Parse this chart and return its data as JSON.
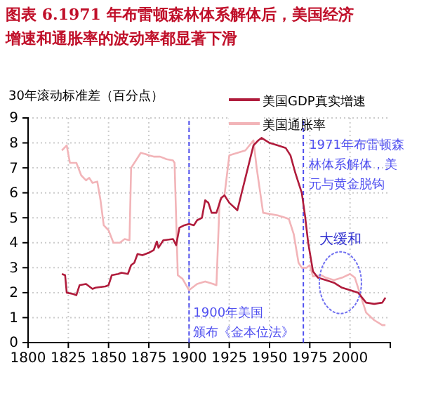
{
  "chart_data": {
    "type": "line",
    "title": "图表 6.1971 年布雷顿森林体系解体后，美国经济增速和通胀率的波动率都显著下滑",
    "ylabel": "30年滚动标准差（百分点）",
    "xlim": [
      1800,
      2025
    ],
    "xticks": [
      1800,
      1825,
      1850,
      1875,
      1900,
      1925,
      1950,
      1975,
      2000
    ],
    "ylim": [
      0,
      9
    ],
    "yticks": [
      0,
      1,
      2,
      3,
      4,
      5,
      6,
      7,
      8,
      9
    ],
    "grid": true,
    "legend": "top right",
    "line_style": "solid",
    "marker": "none",
    "series": [
      {
        "name": "美国GDP真实增速",
        "color": "#b01c3c",
        "x": [
          1821,
          1823,
          1824,
          1828,
          1830,
          1832,
          1836,
          1840,
          1842,
          1848,
          1850,
          1852,
          1856,
          1858,
          1862,
          1864,
          1866,
          1868,
          1871,
          1875,
          1878,
          1880,
          1881,
          1884,
          1890,
          1892,
          1894,
          1897,
          1900,
          1903,
          1905,
          1908,
          1910,
          1912,
          1914,
          1917,
          1920,
          1922,
          1925,
          1930,
          1935,
          1940,
          1943,
          1945,
          1950,
          1955,
          1960,
          1963,
          1966,
          1970,
          1972,
          1974,
          1977,
          1980,
          1985,
          1990,
          1995,
          2000,
          2005,
          2010,
          2015,
          2020,
          2022
        ],
        "values": [
          2.75,
          2.7,
          2.0,
          1.95,
          1.9,
          2.3,
          2.35,
          2.15,
          2.2,
          2.25,
          2.3,
          2.7,
          2.75,
          2.8,
          2.75,
          3.1,
          3.2,
          3.55,
          3.5,
          3.6,
          3.7,
          4.05,
          3.8,
          4.1,
          4.15,
          3.9,
          4.6,
          4.7,
          4.75,
          4.7,
          4.9,
          5.0,
          5.7,
          5.6,
          5.2,
          5.2,
          5.8,
          5.9,
          5.6,
          5.3,
          6.6,
          7.9,
          8.1,
          8.2,
          8.0,
          7.9,
          7.8,
          7.5,
          6.8,
          6.0,
          5.1,
          4.0,
          2.85,
          2.6,
          2.5,
          2.4,
          2.2,
          2.1,
          2.0,
          1.6,
          1.55,
          1.6,
          1.8
        ]
      },
      {
        "name": "美国通胀率",
        "color": "#f2b4b8",
        "x": [
          1821,
          1824,
          1826,
          1830,
          1833,
          1836,
          1838,
          1840,
          1843,
          1845,
          1847,
          1850,
          1853,
          1857,
          1860,
          1863,
          1864,
          1867,
          1870,
          1873,
          1875,
          1878,
          1882,
          1886,
          1890,
          1891,
          1893,
          1896,
          1900,
          1902,
          1905,
          1910,
          1915,
          1917,
          1919,
          1922,
          1925,
          1930,
          1935,
          1940,
          1942,
          1946,
          1955,
          1960,
          1962,
          1965,
          1968,
          1970,
          1973,
          1975,
          1977,
          1982,
          1985,
          1990,
          1995,
          2000,
          2003,
          2005,
          2010,
          2015,
          2020,
          2022
        ],
        "values": [
          7.7,
          7.9,
          7.2,
          7.2,
          6.7,
          6.5,
          6.6,
          6.4,
          6.45,
          5.7,
          4.7,
          4.5,
          4.0,
          4.0,
          4.15,
          4.1,
          7.0,
          7.3,
          7.6,
          7.55,
          7.5,
          7.45,
          7.45,
          7.35,
          7.3,
          7.2,
          2.7,
          2.55,
          2.1,
          2.2,
          2.35,
          2.45,
          2.35,
          2.3,
          5.7,
          5.9,
          7.5,
          7.6,
          7.7,
          8.1,
          7.0,
          5.2,
          5.1,
          5.0,
          4.95,
          4.35,
          3.2,
          3.0,
          3.0,
          3.1,
          2.65,
          2.7,
          2.6,
          2.5,
          2.6,
          2.75,
          2.6,
          2.2,
          1.2,
          0.9,
          0.7,
          0.7
        ]
      }
    ],
    "ref_lines": [
      {
        "axis": "x",
        "value": 1900,
        "label": "1900年美国颁布《金本位法》",
        "color": "#5050f0",
        "line_style": "dashed"
      },
      {
        "axis": "x",
        "value": 1971,
        "label": "1971年布雷顿森林体系解体，美元与黄金脱钩",
        "color": "#5050f0",
        "line_style": "dashed"
      }
    ],
    "annotations": [
      {
        "text": "大缓和",
        "x": 1994,
        "y": 2.4
      }
    ]
  }
}
